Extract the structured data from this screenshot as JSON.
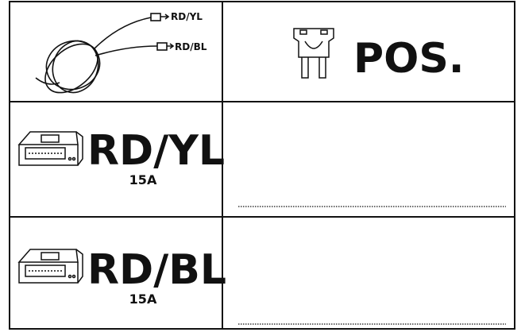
{
  "top": {
    "wire_labels": [
      "RD/YL",
      "RD/BL"
    ],
    "fuse_label": "POS."
  },
  "rows": [
    {
      "label": "RD/YL",
      "rating": "15A"
    },
    {
      "label": "RD/BL",
      "rating": "15A"
    }
  ]
}
